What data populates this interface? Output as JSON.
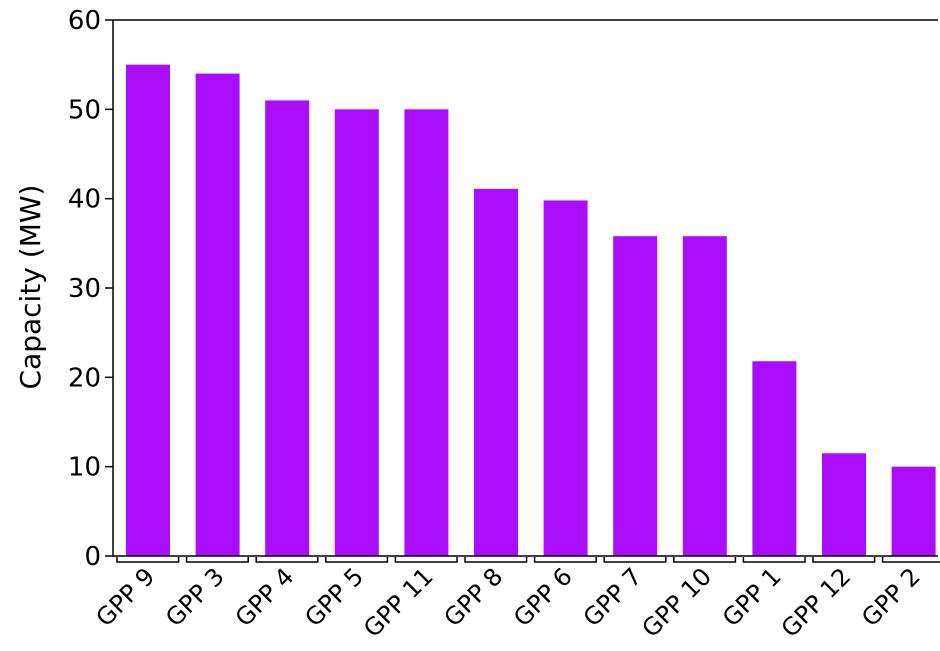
{
  "chart_data": {
    "type": "bar",
    "title": "",
    "xlabel": "",
    "ylabel": "Capacity (MW)",
    "categories": [
      "GPP 9",
      "GPP 3",
      "GPP 4",
      "GPP 5",
      "GPP 11",
      "GPP 8",
      "GPP 6",
      "GPP 7",
      "GPP 10",
      "GPP 1",
      "GPP 12",
      "GPP 2"
    ],
    "values": [
      55,
      54,
      51,
      50,
      50,
      41.1,
      39.8,
      35.8,
      35.8,
      21.8,
      11.5,
      10
    ],
    "ylim": [
      0,
      60
    ],
    "yticks": [
      "0",
      "10",
      "20",
      "30",
      "40",
      "50",
      "60"
    ],
    "bar_color": "#aa0cfc",
    "grid": false,
    "legend": "none"
  }
}
